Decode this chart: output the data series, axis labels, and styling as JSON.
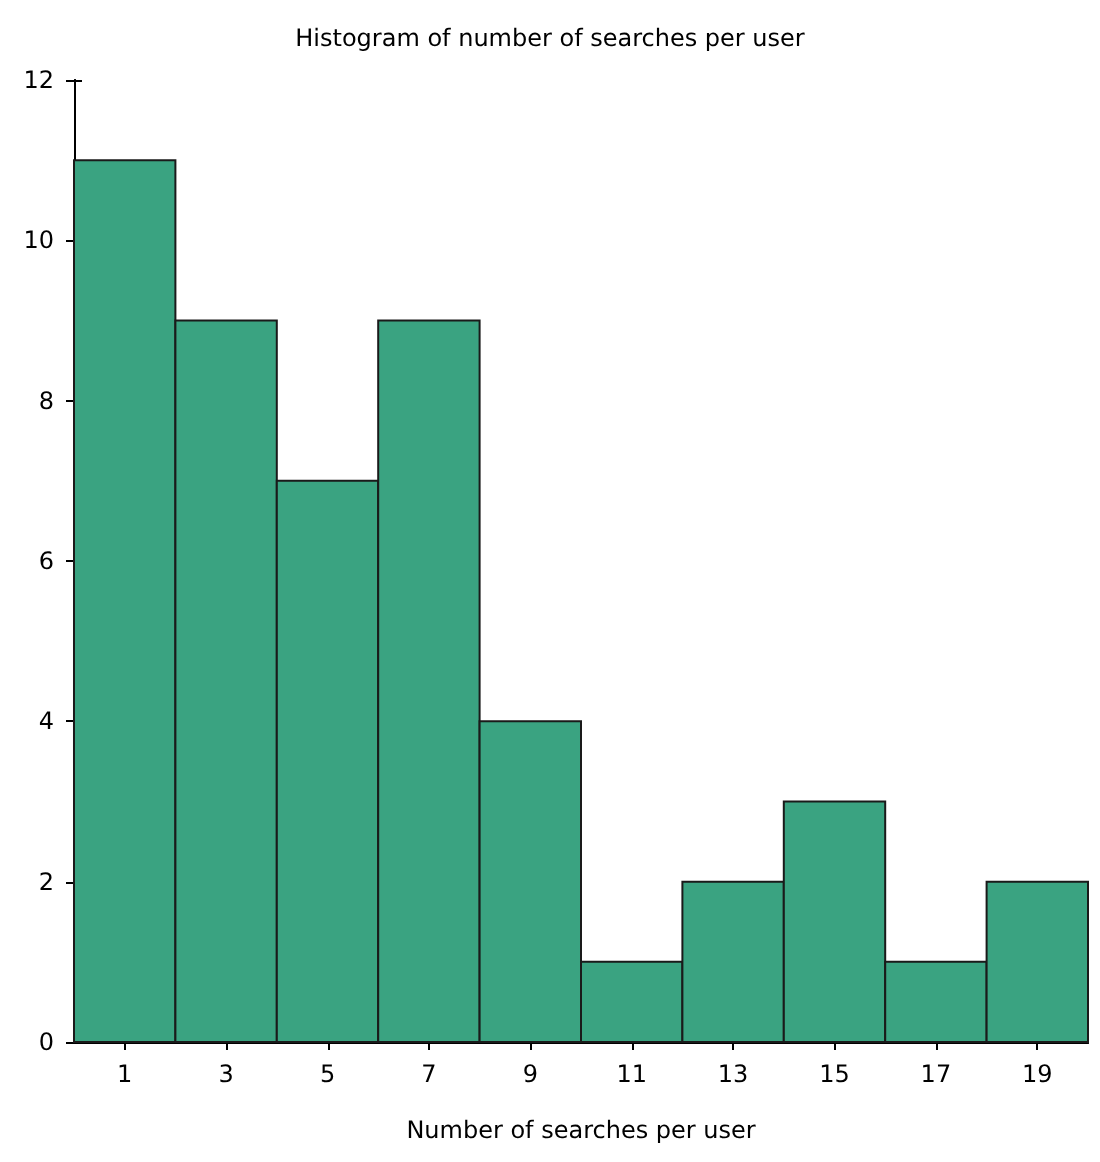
{
  "chart_data": {
    "type": "histogram",
    "title": "Histogram of number of searches per user",
    "xlabel": "Number of searches per user",
    "bins": [
      0,
      2,
      4,
      6,
      8,
      10,
      12,
      14,
      16,
      18,
      20
    ],
    "values": [
      11,
      9,
      7,
      9,
      4,
      1,
      2,
      3,
      1,
      2
    ],
    "color": "#3aa381",
    "xlim": [
      0,
      20
    ],
    "xticks": [
      1,
      3,
      5,
      7,
      9,
      11,
      13,
      15,
      17,
      19
    ],
    "ylim": [
      0,
      12
    ],
    "yticks": [
      0,
      2,
      4,
      6,
      8,
      10,
      12
    ],
    "grid": false
  }
}
